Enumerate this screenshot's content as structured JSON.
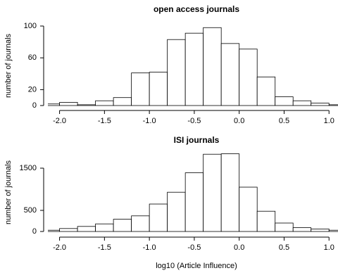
{
  "chart_data": [
    {
      "type": "histogram",
      "title": "open access journals",
      "ylabel": "number of journals",
      "bins": [
        -2.2,
        -2.0,
        -1.8,
        -1.6,
        -1.4,
        -1.2,
        -1.0,
        -0.8,
        -0.6,
        -0.4,
        -0.2,
        0.0,
        0.2,
        0.4,
        0.6,
        0.8,
        1.0,
        1.2
      ],
      "values": [
        2,
        4,
        1,
        6,
        10,
        41,
        42,
        83,
        91,
        98,
        78,
        71,
        36,
        11,
        6,
        3,
        1
      ],
      "color": "#ffffff",
      "xlim": [
        -2.13,
        1.1
      ],
      "ylim": [
        0,
        100
      ],
      "xticks": [
        {
          "value": -2.0,
          "label": "-2.0"
        },
        -1.5,
        {
          "value": -1.0,
          "label": "-1.0"
        },
        -0.5,
        {
          "value": 0.0,
          "label": "0.0"
        },
        0.5,
        {
          "value": 1.0,
          "label": "1.0"
        }
      ],
      "yticks": [
        0,
        20,
        60,
        100
      ]
    },
    {
      "type": "histogram",
      "title": "ISI journals",
      "ylabel": "number of journals",
      "xlabel": "log10 (Article Influence)",
      "bins": [
        -2.2,
        -2.0,
        -1.8,
        -1.6,
        -1.4,
        -1.2,
        -1.0,
        -0.8,
        -0.6,
        -0.4,
        -0.2,
        0.0,
        0.2,
        0.4,
        0.6,
        0.8,
        1.0,
        1.2
      ],
      "values": [
        30,
        70,
        120,
        180,
        290,
        370,
        650,
        930,
        1390,
        1830,
        1840,
        1050,
        480,
        200,
        90,
        60,
        30
      ],
      "color": "#ffffff",
      "xlim": [
        -2.13,
        1.1
      ],
      "ylim": [
        0,
        1850
      ],
      "xticks": [
        {
          "value": -2.0,
          "label": "-2.0"
        },
        -1.5,
        {
          "value": -1.0,
          "label": "-1.0"
        },
        -0.5,
        {
          "value": 0.0,
          "label": "0.0"
        },
        0.5,
        {
          "value": 1.0,
          "label": "1.0"
        }
      ],
      "yticks": [
        0,
        500,
        1500
      ]
    }
  ]
}
